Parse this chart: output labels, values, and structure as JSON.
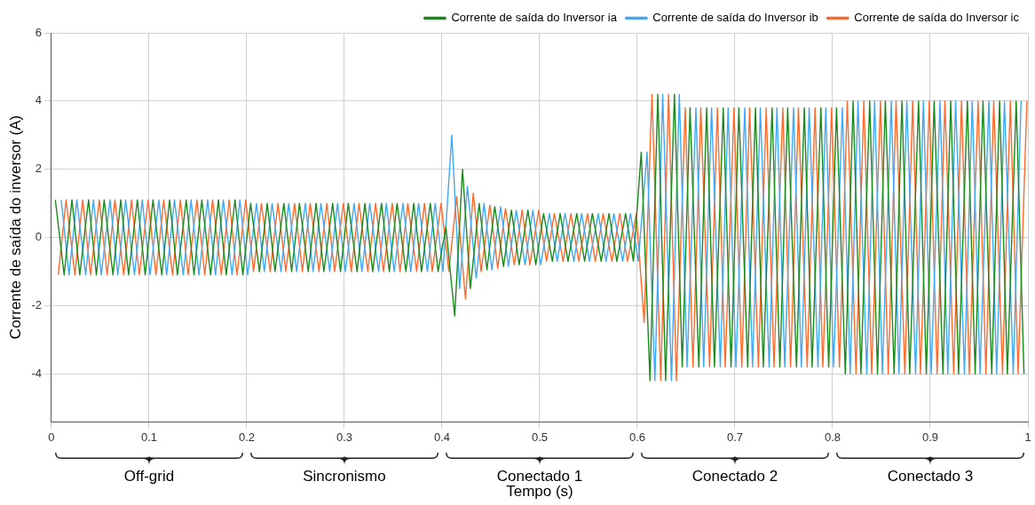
{
  "chart_data": {
    "type": "line",
    "xlabel": "Tempo (s)",
    "ylabel": "Corrente de saída do inversor (A)",
    "xlim": [
      0,
      1
    ],
    "xticks": [
      0,
      0.1,
      0.2,
      0.3,
      0.4,
      0.5,
      0.6,
      0.7,
      0.8,
      0.9,
      1
    ],
    "ylim": [
      -5.4,
      6
    ],
    "yticks": [
      -4,
      -2,
      0,
      2,
      4,
      6
    ],
    "grid": true,
    "legend": "top right",
    "marker": "none",
    "line_style": "solid",
    "annotations": [
      "Off-grid",
      "Sincronismo",
      "Conectado 1",
      "Conectado 2",
      "Conectado 3"
    ],
    "series": [
      {
        "name": "Corrente de saída do Inversor ia",
        "color": "#1a8a1a",
        "x": [
          0.004,
          0.013,
          0.021,
          0.029,
          0.038,
          0.046,
          0.054,
          0.063,
          0.071,
          0.079,
          0.088,
          0.096,
          0.104,
          0.113,
          0.121,
          0.129,
          0.138,
          0.146,
          0.154,
          0.163,
          0.171,
          0.179,
          0.188,
          0.196,
          0.204,
          0.213,
          0.221,
          0.229,
          0.238,
          0.246,
          0.254,
          0.263,
          0.271,
          0.279,
          0.288,
          0.296,
          0.304,
          0.313,
          0.321,
          0.329,
          0.338,
          0.346,
          0.354,
          0.363,
          0.371,
          0.379,
          0.388,
          0.396,
          0.404,
          0.413,
          0.421,
          0.429,
          0.438,
          0.446,
          0.454,
          0.463,
          0.471,
          0.479,
          0.488,
          0.496,
          0.504,
          0.513,
          0.521,
          0.529,
          0.538,
          0.546,
          0.554,
          0.563,
          0.571,
          0.579,
          0.588,
          0.596,
          0.604,
          0.613,
          0.621,
          0.629,
          0.638,
          0.646,
          0.654,
          0.663,
          0.671,
          0.679,
          0.688,
          0.696,
          0.704,
          0.713,
          0.721,
          0.729,
          0.738,
          0.746,
          0.754,
          0.763,
          0.771,
          0.779,
          0.788,
          0.796,
          0.804,
          0.813,
          0.821,
          0.829,
          0.838,
          0.846,
          0.854,
          0.863,
          0.871,
          0.879,
          0.888,
          0.896,
          0.904,
          0.913,
          0.921,
          0.929,
          0.938,
          0.946,
          0.954,
          0.963,
          0.971,
          0.979,
          0.988,
          0.996
        ],
        "values": [
          1.1,
          -1.1,
          1.1,
          -1.1,
          1.1,
          -1.1,
          1.1,
          -1.1,
          1.1,
          -1.1,
          1.1,
          -1.1,
          1.1,
          -1.1,
          1.1,
          -1.1,
          1.1,
          -1.1,
          1.1,
          -1.1,
          1.1,
          -1.1,
          1.1,
          -1.1,
          1,
          -1,
          1,
          -1,
          1,
          -1,
          1,
          -1,
          1,
          -1,
          1,
          -1,
          1,
          -1,
          1,
          -1,
          1,
          -1,
          1,
          -1,
          1,
          -1,
          1,
          -1,
          0.3,
          -2.3,
          2,
          -1.5,
          1,
          -0.95,
          0.9,
          -0.85,
          0.8,
          -0.8,
          0.8,
          -0.8,
          0.7,
          -0.7,
          0.7,
          -0.7,
          0.7,
          -0.7,
          0.7,
          -0.7,
          0.7,
          -0.7,
          0.7,
          -0.7,
          2.5,
          -4.2,
          4.2,
          -4.2,
          4.2,
          -3.8,
          3.8,
          -3.8,
          3.8,
          -3.8,
          3.8,
          -3.8,
          3.8,
          -3.8,
          3.8,
          -3.8,
          3.8,
          -3.8,
          3.8,
          -3.8,
          3.8,
          -3.8,
          3.8,
          -3.8,
          3.8,
          -4,
          4,
          -4,
          4,
          -4,
          4,
          -4,
          4,
          -4,
          4,
          -4,
          4,
          -4,
          4,
          -4,
          4,
          -4,
          4,
          -4,
          4,
          -4,
          4,
          -4
        ]
      },
      {
        "name": "Corrente de saída do Inversor ib",
        "color": "#3fa9f5",
        "x": [
          0.01,
          0.018,
          0.026,
          0.035,
          0.043,
          0.051,
          0.06,
          0.068,
          0.076,
          0.085,
          0.093,
          0.101,
          0.11,
          0.118,
          0.126,
          0.135,
          0.143,
          0.151,
          0.16,
          0.168,
          0.176,
          0.185,
          0.193,
          0.201,
          0.21,
          0.218,
          0.226,
          0.235,
          0.243,
          0.251,
          0.26,
          0.268,
          0.276,
          0.285,
          0.293,
          0.301,
          0.31,
          0.318,
          0.326,
          0.335,
          0.343,
          0.351,
          0.36,
          0.368,
          0.376,
          0.385,
          0.393,
          0.401,
          0.41,
          0.418,
          0.426,
          0.435,
          0.443,
          0.451,
          0.46,
          0.468,
          0.476,
          0.485,
          0.493,
          0.501,
          0.51,
          0.518,
          0.526,
          0.535,
          0.543,
          0.551,
          0.56,
          0.568,
          0.576,
          0.585,
          0.593,
          0.601,
          0.61,
          0.618,
          0.626,
          0.635,
          0.643,
          0.651,
          0.66,
          0.668,
          0.676,
          0.685,
          0.693,
          0.701,
          0.71,
          0.718,
          0.726,
          0.735,
          0.743,
          0.751,
          0.76,
          0.768,
          0.776,
          0.785,
          0.793,
          0.801,
          0.81,
          0.818,
          0.826,
          0.835,
          0.843,
          0.851,
          0.86,
          0.868,
          0.876,
          0.885,
          0.893,
          0.901,
          0.91,
          0.918,
          0.926,
          0.935,
          0.943,
          0.951,
          0.96,
          0.968,
          0.976,
          0.985,
          0.993
        ],
        "values": [
          1.1,
          -1.1,
          1.1,
          -1.1,
          1.1,
          -1.1,
          1.1,
          -1.1,
          1.1,
          -1.1,
          1.1,
          -1.1,
          1.1,
          -1.1,
          1.1,
          -1.1,
          1.1,
          -1.1,
          1.1,
          -1.1,
          1.1,
          -1.1,
          1.1,
          -1.1,
          1,
          -1,
          1,
          -1,
          1,
          -1,
          1,
          -1,
          1,
          -1,
          1,
          -1,
          1,
          -1,
          1,
          -1,
          1,
          -1,
          1,
          -1,
          1,
          -1,
          1,
          -1,
          3,
          -1.5,
          1.5,
          -1.2,
          1,
          -0.95,
          0.9,
          -0.85,
          0.8,
          -0.8,
          0.8,
          -0.8,
          0.7,
          -0.7,
          0.7,
          -0.7,
          0.7,
          -0.7,
          0.7,
          -0.7,
          0.7,
          -0.7,
          0.7,
          -0.7,
          2.5,
          -4.2,
          4.2,
          -4.2,
          4.2,
          -3.8,
          3.8,
          -3.8,
          3.8,
          -3.8,
          3.8,
          -3.8,
          3.8,
          -3.8,
          3.8,
          -3.8,
          3.8,
          -3.8,
          3.8,
          -3.8,
          3.8,
          -3.8,
          3.8,
          -3.8,
          3.8,
          -4,
          4,
          -4,
          4,
          -4,
          4,
          -4,
          4,
          -4,
          4,
          -4,
          4,
          -4,
          4,
          -4,
          4,
          -4,
          4,
          -4,
          4,
          -4,
          4
        ]
      },
      {
        "name": "Corrente de saída do Inversor ic",
        "color": "#ff6a2a",
        "x": [
          0.007,
          0.015,
          0.024,
          0.032,
          0.04,
          0.049,
          0.057,
          0.065,
          0.074,
          0.082,
          0.09,
          0.099,
          0.107,
          0.115,
          0.124,
          0.132,
          0.14,
          0.149,
          0.157,
          0.165,
          0.174,
          0.182,
          0.19,
          0.199,
          0.207,
          0.215,
          0.224,
          0.232,
          0.24,
          0.249,
          0.257,
          0.265,
          0.274,
          0.282,
          0.29,
          0.299,
          0.307,
          0.315,
          0.324,
          0.332,
          0.34,
          0.349,
          0.357,
          0.365,
          0.374,
          0.382,
          0.39,
          0.399,
          0.407,
          0.415,
          0.424,
          0.432,
          0.44,
          0.449,
          0.457,
          0.465,
          0.474,
          0.482,
          0.49,
          0.499,
          0.507,
          0.515,
          0.524,
          0.532,
          0.54,
          0.549,
          0.557,
          0.565,
          0.574,
          0.582,
          0.59,
          0.599,
          0.607,
          0.615,
          0.624,
          0.632,
          0.64,
          0.649,
          0.657,
          0.665,
          0.674,
          0.682,
          0.69,
          0.699,
          0.707,
          0.715,
          0.724,
          0.732,
          0.74,
          0.749,
          0.757,
          0.765,
          0.774,
          0.782,
          0.79,
          0.799,
          0.807,
          0.815,
          0.824,
          0.832,
          0.84,
          0.849,
          0.857,
          0.865,
          0.874,
          0.882,
          0.89,
          0.899,
          0.907,
          0.915,
          0.924,
          0.932,
          0.94,
          0.949,
          0.957,
          0.965,
          0.974,
          0.982,
          0.99,
          0.999
        ],
        "values": [
          -1.1,
          1.1,
          -1.1,
          1.1,
          -1.1,
          1.1,
          -1.1,
          1.1,
          -1.1,
          1.1,
          -1.1,
          1.1,
          -1.1,
          1.1,
          -1.1,
          1.1,
          -1.1,
          1.1,
          -1.1,
          1.1,
          -1.1,
          1.1,
          -1.1,
          1.1,
          -1,
          1,
          -1,
          1,
          -1,
          1,
          -1,
          1,
          -1,
          1,
          -1,
          1,
          -1,
          1,
          -1,
          1,
          -1,
          1,
          -1,
          1,
          -1,
          1,
          -1,
          1,
          -1,
          1.2,
          -1.8,
          1.3,
          -1,
          0.95,
          -0.9,
          0.85,
          -0.8,
          0.8,
          -0.8,
          0.8,
          -0.7,
          0.7,
          -0.7,
          0.7,
          -0.7,
          0.7,
          -0.7,
          0.7,
          -0.7,
          0.7,
          -0.7,
          0.7,
          -2.5,
          4.2,
          -4.2,
          4.2,
          -4.2,
          3.8,
          -3.8,
          3.8,
          -3.8,
          3.8,
          -3.8,
          3.8,
          -3.8,
          3.8,
          -3.8,
          3.8,
          -3.8,
          3.8,
          -3.8,
          3.8,
          -3.8,
          3.8,
          -3.8,
          3.8,
          -3.8,
          4,
          -4,
          4,
          -4,
          4,
          -4,
          4,
          -4,
          4,
          -4,
          4,
          -4,
          4,
          -4,
          4,
          -4,
          4,
          -4,
          4,
          -4,
          4,
          -4,
          4
        ]
      }
    ]
  }
}
